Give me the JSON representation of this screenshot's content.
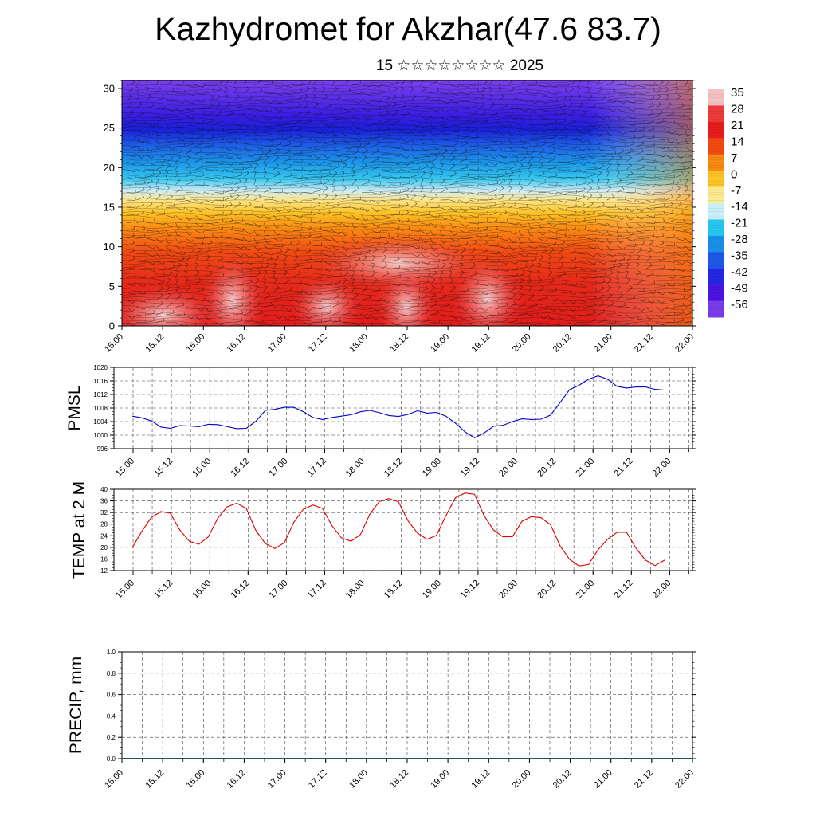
{
  "header": {
    "title": "Kazhydromet for Akzhar(47.6 83.7)",
    "subtitle": "15 ☆☆☆☆☆☆☆☆ 2025"
  },
  "chart_data": [
    {
      "type": "heatmap",
      "title": "",
      "xlabel": "",
      "ylabel": "",
      "x_tick_labels": [
        "15.00",
        "15.12",
        "16.00",
        "16.12",
        "17.00",
        "17.12",
        "18.00",
        "18.12",
        "19.00",
        "19.12",
        "20.00",
        "20.12",
        "21.00",
        "21.12",
        "22.00"
      ],
      "y_ticks": [
        0,
        5,
        10,
        15,
        20,
        25,
        30
      ],
      "ylim": [
        0,
        31
      ],
      "colorbar_labels": [
        "35",
        "28",
        "21",
        "14",
        "7",
        "0",
        "-7",
        "-14",
        "-21",
        "-28",
        "-35",
        "-42",
        "-49",
        "-56"
      ],
      "colorbar_colors": [
        "#f4c2c2",
        "#ee3a3a",
        "#e41d1d",
        "#f24a10",
        "#f98a10",
        "#fdc427",
        "#fde98f",
        "#c8eef8",
        "#26c6ee",
        "#1a8fe8",
        "#1e58e6",
        "#2626e6",
        "#4a14e2",
        "#7a3ce8"
      ],
      "overlay": "wind barbs"
    },
    {
      "type": "line",
      "ylabel": "PMSL",
      "x_tick_labels": [
        "15.00",
        "15.12",
        "16.00",
        "16.12",
        "17.00",
        "17.12",
        "18.00",
        "18.12",
        "19.00",
        "19.12",
        "20.00",
        "20.12",
        "21.00",
        "21.12",
        "22.00"
      ],
      "y_ticks": [
        996,
        1000,
        1004,
        1008,
        1012,
        1016,
        1020
      ],
      "ylim": [
        996,
        1020
      ],
      "grid": true,
      "color": "#0000cc",
      "series": [
        {
          "values": [
            1005.6,
            1005.1,
            1004.2,
            1002.4,
            1002.0,
            1002.8,
            1002.7,
            1002.5,
            1003.2,
            1003.1,
            1002.5,
            1001.9,
            1002.0,
            1004.1,
            1007.3,
            1007.6,
            1008.2,
            1008.2,
            1006.9,
            1005.2,
            1004.6,
            1005.2,
            1005.6,
            1006.0,
            1006.9,
            1007.3,
            1006.6,
            1005.8,
            1005.5,
            1006.1,
            1007.2,
            1006.5,
            1006.7,
            1005.6,
            1003.5,
            1001.0,
            999.2,
            1000.6,
            1002.6,
            1002.9,
            1004.0,
            1004.8,
            1004.6,
            1004.7,
            1005.9,
            1009.6,
            1013.4,
            1014.7,
            1016.5,
            1017.5,
            1016.5,
            1014.4,
            1013.9,
            1014.2,
            1014.2,
            1013.5,
            1013.3
          ]
        }
      ]
    },
    {
      "type": "line",
      "ylabel": "TEMP at 2 M",
      "x_tick_labels": [
        "15.00",
        "15.12",
        "16.00",
        "16.12",
        "17.00",
        "17.12",
        "18.00",
        "18.12",
        "19.00",
        "19.12",
        "20.00",
        "20.12",
        "21.00",
        "21.12",
        "22.00"
      ],
      "y_ticks": [
        12,
        16,
        20,
        24,
        28,
        32,
        36,
        40
      ],
      "ylim": [
        12,
        40
      ],
      "grid": true,
      "color": "#dd0000",
      "series": [
        {
          "values": [
            19.9,
            25.5,
            30.3,
            32.3,
            31.8,
            26.0,
            22.1,
            21.1,
            23.6,
            30.1,
            34.0,
            35.2,
            33.4,
            25.8,
            21.3,
            19.6,
            21.6,
            28.7,
            33.1,
            34.6,
            33.4,
            27.5,
            23.3,
            22.1,
            24.4,
            31.5,
            35.8,
            36.8,
            35.7,
            29.2,
            24.9,
            22.8,
            24.1,
            30.9,
            37.1,
            38.7,
            38.3,
            31.0,
            26.0,
            23.6,
            23.7,
            29.0,
            30.6,
            30.2,
            27.8,
            20.5,
            15.9,
            13.6,
            14.1,
            19.2,
            22.8,
            25.2,
            25.2,
            19.7,
            15.6,
            13.7,
            15.6
          ]
        }
      ]
    },
    {
      "type": "bar",
      "ylabel": "PRECIP, mm",
      "x_tick_labels": [
        "15.00",
        "15.12",
        "16.00",
        "16.12",
        "17.00",
        "17.12",
        "18.00",
        "18.12",
        "19.00",
        "19.12",
        "20.00",
        "20.12",
        "21.00",
        "21.12",
        "22.00"
      ],
      "y_ticks": [
        0.0,
        0.2,
        0.4,
        0.6,
        0.8,
        1.0
      ],
      "y_tick_labels": [
        "0.0",
        "0.2",
        "0.4",
        "0.6",
        "0.8",
        "1.0"
      ],
      "ylim": [
        0,
        1
      ],
      "grid": true,
      "values": []
    }
  ]
}
